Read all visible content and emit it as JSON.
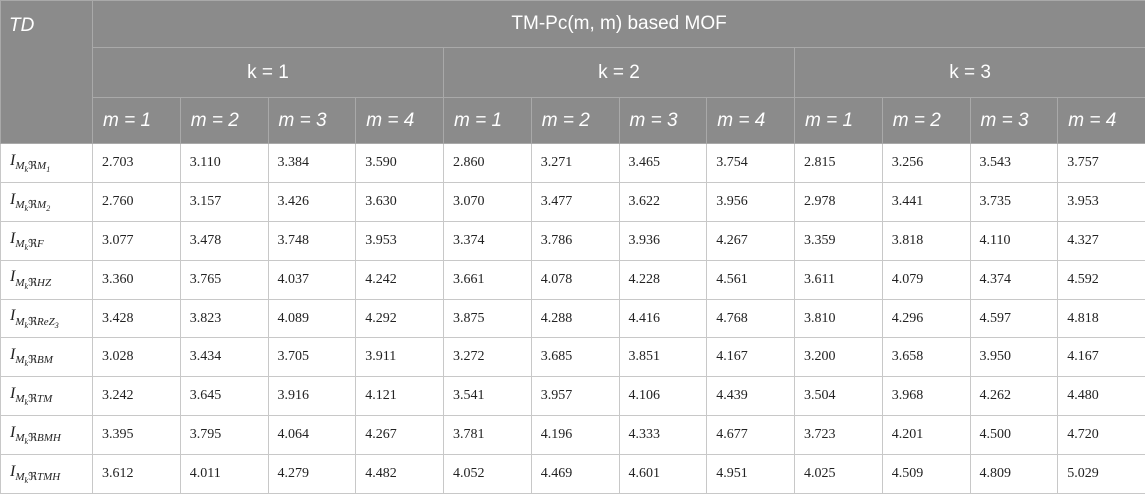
{
  "header": {
    "corner": "TD",
    "title": "TM-Pc(m, m) based MOF",
    "groups": [
      "k = 1",
      "k = 2",
      "k = 3"
    ],
    "subheaders": [
      "m = 1",
      "m = 2",
      "m = 3",
      "m = 4",
      "m = 1",
      "m = 2",
      "m = 3",
      "m = 4",
      "m = 1",
      "m = 2",
      "m = 3",
      "m = 4"
    ]
  },
  "rows": [
    {
      "label": {
        "symbol": "I",
        "index": "M",
        "index_sub": "k",
        "operator": "ℜ",
        "arg": "M",
        "arg_sub": "1"
      },
      "values": [
        "2.703",
        "3.110",
        "3.384",
        "3.590",
        "2.860",
        "3.271",
        "3.465",
        "3.754",
        "2.815",
        "3.256",
        "3.543",
        "3.757"
      ]
    },
    {
      "label": {
        "symbol": "I",
        "index": "M",
        "index_sub": "k",
        "operator": "ℜ",
        "arg": "M",
        "arg_sub": "2"
      },
      "values": [
        "2.760",
        "3.157",
        "3.426",
        "3.630",
        "3.070",
        "3.477",
        "3.622",
        "3.956",
        "2.978",
        "3.441",
        "3.735",
        "3.953"
      ]
    },
    {
      "label": {
        "symbol": "I",
        "index": "M",
        "index_sub": "k",
        "operator": "ℜ",
        "arg": "F"
      },
      "values": [
        "3.077",
        "3.478",
        "3.748",
        "3.953",
        "3.374",
        "3.786",
        "3.936",
        "4.267",
        "3.359",
        "3.818",
        "4.110",
        "4.327"
      ]
    },
    {
      "label": {
        "symbol": "I",
        "index": "M",
        "index_sub": "k",
        "operator": "ℜ",
        "arg": "HZ"
      },
      "values": [
        "3.360",
        "3.765",
        "4.037",
        "4.242",
        "3.661",
        "4.078",
        "4.228",
        "4.561",
        "3.611",
        "4.079",
        "4.374",
        "4.592"
      ]
    },
    {
      "label": {
        "symbol": "I",
        "index": "M",
        "index_sub": "k",
        "operator": "ℜ",
        "arg": "ReZ",
        "arg_sub": "3"
      },
      "values": [
        "3.428",
        "3.823",
        "4.089",
        "4.292",
        "3.875",
        "4.288",
        "4.416",
        "4.768",
        "3.810",
        "4.296",
        "4.597",
        "4.818"
      ]
    },
    {
      "label": {
        "symbol": "I",
        "index": "M",
        "index_sub": "k",
        "operator": "ℜ",
        "arg": "BM"
      },
      "values": [
        "3.028",
        "3.434",
        "3.705",
        "3.911",
        "3.272",
        "3.685",
        "3.851",
        "4.167",
        "3.200",
        "3.658",
        "3.950",
        "4.167"
      ]
    },
    {
      "label": {
        "symbol": "I",
        "index": "M",
        "index_sub": "k",
        "operator": "ℜ",
        "arg": "TM"
      },
      "values": [
        "3.242",
        "3.645",
        "3.916",
        "4.121",
        "3.541",
        "3.957",
        "4.106",
        "4.439",
        "3.504",
        "3.968",
        "4.262",
        "4.480"
      ]
    },
    {
      "label": {
        "symbol": "I",
        "index": "M",
        "index_sub": "k",
        "operator": "ℜ",
        "arg": "BMH"
      },
      "values": [
        "3.395",
        "3.795",
        "4.064",
        "4.267",
        "3.781",
        "4.196",
        "4.333",
        "4.677",
        "3.723",
        "4.201",
        "4.500",
        "4.720"
      ]
    },
    {
      "label": {
        "symbol": "I",
        "index": "M",
        "index_sub": "k",
        "operator": "ℜ",
        "arg": "TMH"
      },
      "values": [
        "3.612",
        "4.011",
        "4.279",
        "4.482",
        "4.052",
        "4.469",
        "4.601",
        "4.951",
        "4.025",
        "4.509",
        "4.809",
        "5.029"
      ]
    }
  ]
}
